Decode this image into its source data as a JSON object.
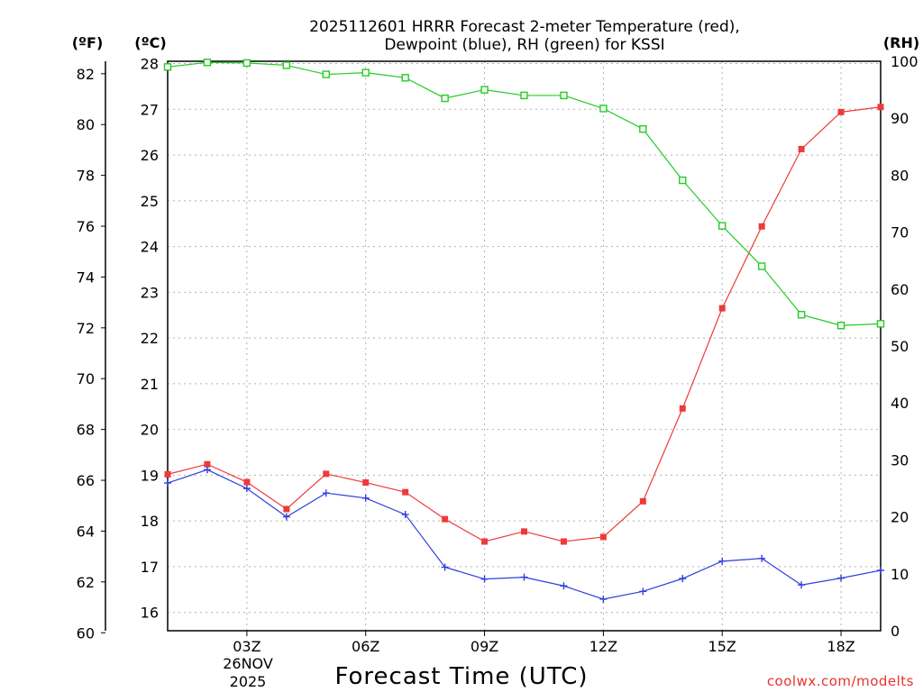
{
  "chart_data": {
    "type": "line",
    "title_line1": "2025112601 HRRR Forecast 2-meter Temperature (red),",
    "title_line2": "Dewpoint (blue), RH (green) for KSSI",
    "unit_f": "(ºF)",
    "unit_c": "(ºC)",
    "unit_rh": "(RH)",
    "xlabel": "Forecast Time (UTC)",
    "credit": "coolwx.com/modelts",
    "date_day": "26NOV",
    "date_year": "2025",
    "hours": [
      1,
      2,
      3,
      4,
      5,
      6,
      7,
      8,
      9,
      10,
      11,
      12,
      13,
      14,
      15,
      16,
      17,
      18,
      19
    ],
    "x_ticks": [
      {
        "hour": 3,
        "label": "03Z"
      },
      {
        "hour": 6,
        "label": "06Z"
      },
      {
        "hour": 9,
        "label": "09Z"
      },
      {
        "hour": 12,
        "label": "12Z"
      },
      {
        "hour": 15,
        "label": "15Z"
      },
      {
        "hour": 18,
        "label": "18Z"
      }
    ],
    "x_range": [
      1,
      19
    ],
    "c_range": [
      15.6,
      28.05
    ],
    "f_ticks": [
      "60",
      "62",
      "64",
      "66",
      "68",
      "70",
      "72",
      "74",
      "76",
      "78",
      "80",
      "82"
    ],
    "c_ticks": [
      "16",
      "17",
      "18",
      "19",
      "20",
      "21",
      "22",
      "23",
      "24",
      "25",
      "26",
      "27",
      "28"
    ],
    "rh_range": [
      0,
      100
    ],
    "rh_ticks": [
      "0",
      "10",
      "20",
      "30",
      "40",
      "50",
      "60",
      "70",
      "80",
      "90",
      "100"
    ],
    "series": [
      {
        "name": "Temperature",
        "color": "#ee3a3a",
        "marker": "square-filled",
        "values": [
          19.02,
          19.24,
          18.85,
          18.26,
          19.03,
          18.84,
          18.63,
          18.04,
          17.55,
          17.77,
          17.55,
          17.65,
          18.43,
          20.46,
          22.65,
          24.44,
          26.13,
          26.94,
          27.05
        ]
      },
      {
        "name": "Dewpoint",
        "color": "#2f3fdc",
        "marker": "plus",
        "values": [
          18.83,
          19.12,
          18.71,
          18.09,
          18.61,
          18.5,
          18.14,
          16.99,
          16.73,
          16.77,
          16.58,
          16.29,
          16.46,
          16.74,
          17.12,
          17.18,
          16.6,
          16.75,
          16.92
        ]
      },
      {
        "name": "RH",
        "color": "#22cc22",
        "marker": "square-open",
        "axis": "rh",
        "values": [
          99,
          99.8,
          99.7,
          99.3,
          97.7,
          98,
          97.1,
          93.5,
          95,
          94,
          94,
          91.7,
          88.1,
          79.1,
          71.1,
          64,
          55.5,
          53.6,
          53.9
        ]
      }
    ]
  }
}
